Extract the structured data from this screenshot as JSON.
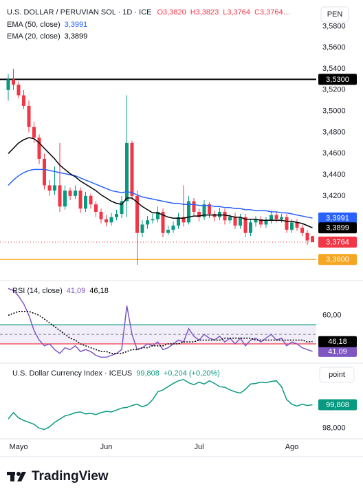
{
  "brand": "TradingView",
  "chart_data": [
    {
      "type": "candlestick",
      "title": "U.S. DOLLAR / PERUVIAN SOL · 1D · ICE",
      "ohlc_labels": [
        "O3,3820",
        "H3,3823",
        "L3,3764",
        "C3,3764…"
      ],
      "currency": "PEN",
      "up_color": "#089981",
      "down_color": "#f23645",
      "open": [
        3.52,
        3.53,
        3.525,
        3.515,
        3.505,
        3.485,
        3.475,
        3.455,
        3.43,
        3.425,
        3.43,
        3.41,
        3.425,
        3.42,
        3.425,
        3.408,
        3.42,
        3.412,
        3.405,
        3.398,
        3.395,
        3.4,
        3.403,
        3.415,
        3.47,
        3.42,
        3.385,
        3.393,
        3.397,
        3.398,
        3.405,
        3.385,
        3.388,
        3.392,
        3.4,
        3.395,
        3.415,
        3.405,
        3.4,
        3.412,
        3.403,
        3.4,
        3.405,
        3.397,
        3.4,
        3.392,
        3.4,
        3.385,
        3.395,
        3.398,
        3.393,
        3.397,
        3.402,
        3.398,
        3.4,
        3.388,
        3.395,
        3.39,
        3.385,
        3.382
      ],
      "high": [
        3.535,
        3.54,
        3.528,
        3.52,
        3.51,
        3.49,
        3.478,
        3.46,
        3.435,
        3.448,
        3.47,
        3.43,
        3.428,
        3.43,
        3.428,
        3.424,
        3.422,
        3.415,
        3.408,
        3.402,
        3.404,
        3.407,
        3.42,
        3.515,
        3.472,
        3.425,
        3.397,
        3.401,
        3.403,
        3.41,
        3.408,
        3.392,
        3.396,
        3.404,
        3.43,
        3.42,
        3.418,
        3.408,
        3.416,
        3.414,
        3.406,
        3.409,
        3.408,
        3.403,
        3.404,
        3.403,
        3.403,
        3.398,
        3.401,
        3.401,
        3.4,
        3.406,
        3.405,
        3.403,
        3.403,
        3.398,
        3.398,
        3.393,
        3.388,
        3.3823
      ],
      "low": [
        3.51,
        3.52,
        3.512,
        3.502,
        3.48,
        3.47,
        3.45,
        3.426,
        3.42,
        3.421,
        3.405,
        3.407,
        3.416,
        3.417,
        3.404,
        3.405,
        3.408,
        3.4,
        3.394,
        3.391,
        3.392,
        3.397,
        3.399,
        3.4,
        3.416,
        3.355,
        3.381,
        3.389,
        3.394,
        3.395,
        3.381,
        3.383,
        3.385,
        3.389,
        3.391,
        3.393,
        3.401,
        3.396,
        3.397,
        3.399,
        3.396,
        3.397,
        3.393,
        3.394,
        3.389,
        3.389,
        3.381,
        3.382,
        3.391,
        3.39,
        3.39,
        3.394,
        3.395,
        3.395,
        3.385,
        3.385,
        3.387,
        3.382,
        3.374,
        3.3764
      ],
      "close": [
        3.53,
        3.525,
        3.515,
        3.505,
        3.485,
        3.475,
        3.455,
        3.43,
        3.425,
        3.43,
        3.41,
        3.425,
        3.42,
        3.425,
        3.408,
        3.42,
        3.412,
        3.405,
        3.398,
        3.395,
        3.4,
        3.403,
        3.415,
        3.47,
        3.42,
        3.385,
        3.393,
        3.397,
        3.398,
        3.405,
        3.385,
        3.388,
        3.392,
        3.4,
        3.395,
        3.415,
        3.405,
        3.4,
        3.412,
        3.403,
        3.4,
        3.405,
        3.397,
        3.4,
        3.392,
        3.4,
        3.385,
        3.395,
        3.398,
        3.393,
        3.397,
        3.402,
        3.398,
        3.4,
        3.388,
        3.395,
        3.39,
        3.385,
        3.378,
        3.3764
      ],
      "last_price_label": "3,3764",
      "series": [
        {
          "name": "EMA (50, close)",
          "color": "#2962ff",
          "last_label": "3,3991",
          "values": [
            3.43,
            3.435,
            3.439,
            3.442,
            3.444,
            3.445,
            3.445,
            3.445,
            3.444,
            3.443,
            3.442,
            3.441,
            3.44,
            3.439,
            3.437,
            3.435,
            3.433,
            3.431,
            3.429,
            3.427,
            3.425,
            3.424,
            3.423,
            3.424,
            3.423,
            3.421,
            3.419,
            3.418,
            3.417,
            3.416,
            3.415,
            3.414,
            3.413,
            3.413,
            3.412,
            3.412,
            3.412,
            3.411,
            3.411,
            3.411,
            3.41,
            3.41,
            3.409,
            3.409,
            3.408,
            3.408,
            3.407,
            3.407,
            3.406,
            3.406,
            3.406,
            3.405,
            3.405,
            3.404,
            3.404,
            3.403,
            3.402,
            3.401,
            3.4,
            3.3991
          ]
        },
        {
          "name": "EMA (20, close)",
          "color": "#000000",
          "last_label": "3,3899",
          "values": [
            3.46,
            3.465,
            3.47,
            3.473,
            3.475,
            3.474,
            3.47,
            3.465,
            3.46,
            3.455,
            3.449,
            3.445,
            3.441,
            3.438,
            3.434,
            3.431,
            3.428,
            3.425,
            3.421,
            3.418,
            3.415,
            3.413,
            3.412,
            3.418,
            3.418,
            3.414,
            3.41,
            3.407,
            3.404,
            3.404,
            3.402,
            3.4,
            3.399,
            3.399,
            3.399,
            3.4,
            3.401,
            3.401,
            3.402,
            3.402,
            3.402,
            3.402,
            3.402,
            3.401,
            3.4,
            3.4,
            3.398,
            3.398,
            3.398,
            3.397,
            3.397,
            3.397,
            3.397,
            3.397,
            3.396,
            3.396,
            3.395,
            3.394,
            3.392,
            3.3899
          ]
        }
      ],
      "hlines": [
        {
          "value": 3.53,
          "label": "3,5300",
          "color": "#000000"
        },
        {
          "value": 3.36,
          "label": "3,3600",
          "color": "#f5a623"
        }
      ],
      "ylim": [
        3.342,
        3.6017
      ],
      "yticks": [
        {
          "value": 3.58,
          "label": "3,5800"
        },
        {
          "value": 3.56,
          "label": "3,5600"
        },
        {
          "value": 3.54,
          "label": "3,5400"
        },
        {
          "value": 3.52,
          "label": "3,5200"
        },
        {
          "value": 3.5,
          "label": "3,5000"
        },
        {
          "value": 3.48,
          "label": "3,4800"
        },
        {
          "value": 3.46,
          "label": "3,4600"
        },
        {
          "value": 3.44,
          "label": "3,4400"
        },
        {
          "value": 3.42,
          "label": "3,4200"
        }
      ]
    },
    {
      "type": "line",
      "title": "RSI (14, close)",
      "series": [
        {
          "color": "#7e57c2",
          "last_label": "41,09",
          "values": [
            74,
            73,
            70,
            66,
            60,
            52,
            47,
            44,
            45,
            42,
            40,
            43,
            42,
            44,
            41,
            42,
            41,
            39,
            38,
            38,
            39,
            40,
            42,
            65,
            50,
            42,
            43,
            45,
            44,
            46,
            42,
            43,
            45,
            47,
            46,
            53,
            49,
            47,
            50,
            48,
            47,
            49,
            46,
            48,
            45,
            48,
            44,
            47,
            48,
            46,
            48,
            50,
            47,
            48,
            44,
            46,
            45,
            43,
            42,
            41.09
          ]
        },
        {
          "color": "#000000",
          "style": "dotted",
          "last_label": "46,18",
          "values": [
            60,
            61,
            62,
            62,
            62,
            61,
            60,
            58,
            56,
            54,
            52,
            50,
            48,
            47,
            45,
            44,
            43,
            42,
            41,
            41,
            40,
            40,
            40,
            41,
            42,
            42,
            43,
            43,
            44,
            44,
            44,
            45,
            45,
            45,
            46,
            46,
            46,
            47,
            47,
            47,
            47,
            47,
            48,
            48,
            48,
            48,
            48,
            48,
            47,
            47,
            47,
            47,
            47,
            47,
            47,
            47,
            47,
            47,
            46,
            46.18
          ]
        }
      ],
      "levels": [
        {
          "value": 55,
          "color": "#089981"
        },
        {
          "value": 50,
          "color": "#9598a1",
          "style": "dashed"
        },
        {
          "value": 45,
          "color": "#f23645"
        }
      ],
      "band_fill": "#7e57c2",
      "ylim": [
        36,
        76.7
      ],
      "yticks": [
        {
          "value": 60,
          "label": "60,00"
        }
      ]
    },
    {
      "type": "line",
      "title": "U.S. Dollar Currency Index · ICEUS",
      "change_label": "+0,204 (+0,20%)",
      "unit_label": "point",
      "series": [
        {
          "color": "#089981",
          "last_label": "99,808",
          "values": [
            98.71,
            99.2,
            98.8,
            98.6,
            98.45,
            98.3,
            98.0,
            97.9,
            98.1,
            98.45,
            98.7,
            98.95,
            99.05,
            99.2,
            99.25,
            99.1,
            99.15,
            99.05,
            99.2,
            99.3,
            99.25,
            99.4,
            99.55,
            99.6,
            99.75,
            99.85,
            99.65,
            99.8,
            100.2,
            100.8,
            100.95,
            101.2,
            101.45,
            101.65,
            101.75,
            101.5,
            101.35,
            101.55,
            101.4,
            101.65,
            101.45,
            101.2,
            101.15,
            100.95,
            100.8,
            100.7,
            101.0,
            101.4,
            101.45,
            101.55,
            101.5,
            101.6,
            101.65,
            101.2,
            100.2,
            99.85,
            99.7,
            99.85,
            99.75,
            99.808
          ]
        }
      ],
      "ylim": [
        97.29,
        102.8
      ],
      "yticks": [
        {
          "value": 98,
          "label": "98,000"
        }
      ],
      "xticks": [
        {
          "value": 2,
          "label": "Mayo"
        },
        {
          "value": 19,
          "label": "Jun"
        },
        {
          "value": 37,
          "label": "Jul"
        },
        {
          "value": 55,
          "label": "Ago"
        }
      ]
    }
  ]
}
